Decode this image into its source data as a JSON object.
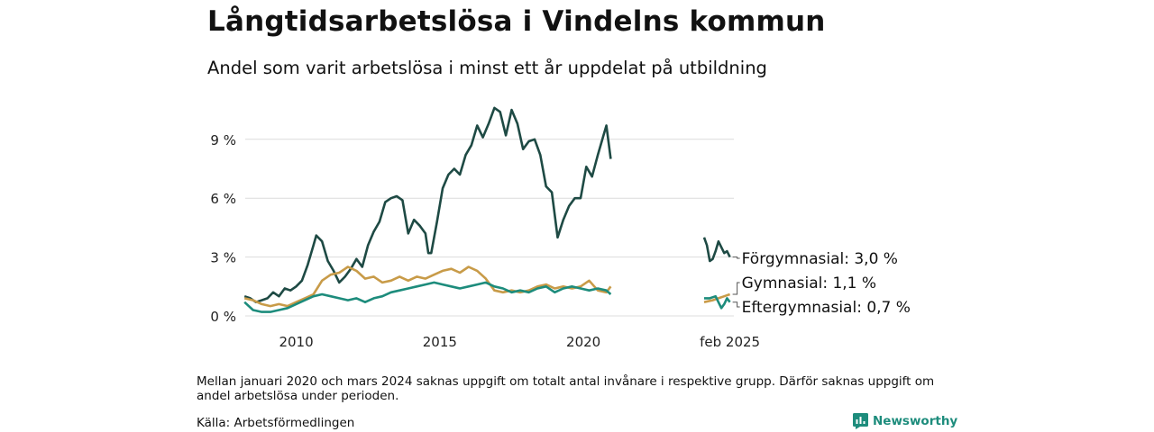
{
  "title": "Långtidsarbetslösa i Vindelns kommun",
  "subtitle": "Andel som varit arbetslösa i minst ett år uppdelat på utbildning",
  "note": "Mellan januari 2020 och mars 2024 saknas uppgift om totalt antal invånare i respektive grupp. Därför saknas uppgift om andel arbetslösa under perioden.",
  "source": "Källa: Arbetsförmedlingen",
  "brand": "Newsworthy",
  "chart_data": {
    "type": "line",
    "y_ticks": [
      {
        "value": 0,
        "label": "0 %"
      },
      {
        "value": 3,
        "label": "3 %"
      },
      {
        "value": 6,
        "label": "6 %"
      },
      {
        "value": 9,
        "label": "9 %"
      }
    ],
    "x_ticks": [
      {
        "value": 2010,
        "label": "2010"
      },
      {
        "value": 2015,
        "label": "2015"
      },
      {
        "value": 2020,
        "label": "2020"
      },
      {
        "value": 2025.1,
        "label": "feb 2025"
      }
    ],
    "xlim": [
      2008.1,
      2025.3
    ],
    "ylim": [
      0,
      10.8
    ],
    "grid": true,
    "legend": "end-of-line labels",
    "series": [
      {
        "name": "Förgymnasial",
        "end_label": "Förgymnasial: 3,0 %",
        "color": "#1e4a44",
        "segments": [
          [
            [
              2008.2,
              1.0
            ],
            [
              2008.4,
              0.9
            ],
            [
              2008.6,
              0.7
            ],
            [
              2008.8,
              0.8
            ],
            [
              2009.0,
              0.9
            ],
            [
              2009.2,
              1.2
            ],
            [
              2009.4,
              1.0
            ],
            [
              2009.6,
              1.4
            ],
            [
              2009.8,
              1.3
            ],
            [
              2010.0,
              1.5
            ],
            [
              2010.2,
              1.8
            ],
            [
              2010.4,
              2.6
            ],
            [
              2010.6,
              3.6
            ],
            [
              2010.7,
              4.1
            ],
            [
              2010.9,
              3.8
            ],
            [
              2011.1,
              2.8
            ],
            [
              2011.3,
              2.3
            ],
            [
              2011.5,
              1.7
            ],
            [
              2011.7,
              2.0
            ],
            [
              2011.9,
              2.4
            ],
            [
              2012.1,
              2.9
            ],
            [
              2012.3,
              2.5
            ],
            [
              2012.5,
              3.6
            ],
            [
              2012.7,
              4.3
            ],
            [
              2012.9,
              4.8
            ],
            [
              2013.1,
              5.8
            ],
            [
              2013.3,
              6.0
            ],
            [
              2013.5,
              6.1
            ],
            [
              2013.7,
              5.9
            ],
            [
              2013.9,
              4.2
            ],
            [
              2014.1,
              4.9
            ],
            [
              2014.3,
              4.6
            ],
            [
              2014.5,
              4.2
            ],
            [
              2014.6,
              3.2
            ],
            [
              2014.7,
              3.2
            ],
            [
              2014.9,
              4.8
            ],
            [
              2015.1,
              6.5
            ],
            [
              2015.3,
              7.2
            ],
            [
              2015.5,
              7.5
            ],
            [
              2015.7,
              7.2
            ],
            [
              2015.9,
              8.2
            ],
            [
              2016.1,
              8.7
            ],
            [
              2016.3,
              9.7
            ],
            [
              2016.5,
              9.1
            ],
            [
              2016.7,
              9.8
            ],
            [
              2016.9,
              10.6
            ],
            [
              2017.1,
              10.4
            ],
            [
              2017.3,
              9.2
            ],
            [
              2017.5,
              10.5
            ],
            [
              2017.7,
              9.8
            ],
            [
              2017.9,
              8.5
            ],
            [
              2018.1,
              8.9
            ],
            [
              2018.3,
              9.0
            ],
            [
              2018.5,
              8.2
            ],
            [
              2018.7,
              6.6
            ],
            [
              2018.9,
              6.3
            ],
            [
              2019.1,
              4.0
            ],
            [
              2019.3,
              4.9
            ],
            [
              2019.5,
              5.6
            ],
            [
              2019.7,
              6.0
            ],
            [
              2019.9,
              6.0
            ],
            [
              2020.1,
              7.6
            ],
            [
              2020.3,
              7.1
            ],
            [
              2020.5,
              8.2
            ],
            [
              2020.7,
              9.2
            ],
            [
              2020.8,
              9.7
            ],
            [
              2020.95,
              8.0
            ]
          ],
          [
            [
              2024.2,
              4.0
            ],
            [
              2024.3,
              3.6
            ],
            [
              2024.4,
              2.8
            ],
            [
              2024.5,
              2.9
            ],
            [
              2024.6,
              3.3
            ],
            [
              2024.7,
              3.8
            ],
            [
              2024.8,
              3.5
            ],
            [
              2024.9,
              3.2
            ],
            [
              2025.0,
              3.3
            ],
            [
              2025.1,
              3.0
            ]
          ]
        ]
      },
      {
        "name": "Gymnasial",
        "end_label": "Gymnasial: 1,1 %",
        "color": "#c89b48",
        "segments": [
          [
            [
              2008.2,
              0.9
            ],
            [
              2008.5,
              0.8
            ],
            [
              2008.8,
              0.6
            ],
            [
              2009.1,
              0.5
            ],
            [
              2009.4,
              0.6
            ],
            [
              2009.7,
              0.5
            ],
            [
              2010.0,
              0.7
            ],
            [
              2010.3,
              0.9
            ],
            [
              2010.6,
              1.1
            ],
            [
              2010.9,
              1.8
            ],
            [
              2011.2,
              2.1
            ],
            [
              2011.5,
              2.2
            ],
            [
              2011.8,
              2.5
            ],
            [
              2012.1,
              2.3
            ],
            [
              2012.4,
              1.9
            ],
            [
              2012.7,
              2.0
            ],
            [
              2013.0,
              1.7
            ],
            [
              2013.3,
              1.8
            ],
            [
              2013.6,
              2.0
            ],
            [
              2013.9,
              1.8
            ],
            [
              2014.2,
              2.0
            ],
            [
              2014.5,
              1.9
            ],
            [
              2014.8,
              2.1
            ],
            [
              2015.1,
              2.3
            ],
            [
              2015.4,
              2.4
            ],
            [
              2015.7,
              2.2
            ],
            [
              2016.0,
              2.5
            ],
            [
              2016.3,
              2.3
            ],
            [
              2016.6,
              1.9
            ],
            [
              2016.9,
              1.3
            ],
            [
              2017.2,
              1.2
            ],
            [
              2017.5,
              1.3
            ],
            [
              2017.8,
              1.2
            ],
            [
              2018.1,
              1.3
            ],
            [
              2018.4,
              1.5
            ],
            [
              2018.7,
              1.6
            ],
            [
              2019.0,
              1.4
            ],
            [
              2019.3,
              1.5
            ],
            [
              2019.6,
              1.4
            ],
            [
              2019.9,
              1.5
            ],
            [
              2020.2,
              1.8
            ],
            [
              2020.5,
              1.3
            ],
            [
              2020.8,
              1.2
            ],
            [
              2020.95,
              1.5
            ]
          ],
          [
            [
              2024.2,
              0.7
            ],
            [
              2024.5,
              0.8
            ],
            [
              2024.7,
              0.9
            ],
            [
              2024.9,
              1.0
            ],
            [
              2025.1,
              1.1
            ]
          ]
        ]
      },
      {
        "name": "Eftergymnasial",
        "end_label": "Eftergymnasial: 0,7 %",
        "color": "#1d8c7c",
        "segments": [
          [
            [
              2008.2,
              0.7
            ],
            [
              2008.5,
              0.3
            ],
            [
              2008.8,
              0.2
            ],
            [
              2009.1,
              0.2
            ],
            [
              2009.4,
              0.3
            ],
            [
              2009.7,
              0.4
            ],
            [
              2010.0,
              0.6
            ],
            [
              2010.3,
              0.8
            ],
            [
              2010.6,
              1.0
            ],
            [
              2010.9,
              1.1
            ],
            [
              2011.2,
              1.0
            ],
            [
              2011.5,
              0.9
            ],
            [
              2011.8,
              0.8
            ],
            [
              2012.1,
              0.9
            ],
            [
              2012.4,
              0.7
            ],
            [
              2012.7,
              0.9
            ],
            [
              2013.0,
              1.0
            ],
            [
              2013.3,
              1.2
            ],
            [
              2013.6,
              1.3
            ],
            [
              2013.9,
              1.4
            ],
            [
              2014.2,
              1.5
            ],
            [
              2014.5,
              1.6
            ],
            [
              2014.8,
              1.7
            ],
            [
              2015.1,
              1.6
            ],
            [
              2015.4,
              1.5
            ],
            [
              2015.7,
              1.4
            ],
            [
              2016.0,
              1.5
            ],
            [
              2016.3,
              1.6
            ],
            [
              2016.6,
              1.7
            ],
            [
              2016.9,
              1.5
            ],
            [
              2017.2,
              1.4
            ],
            [
              2017.5,
              1.2
            ],
            [
              2017.8,
              1.3
            ],
            [
              2018.1,
              1.2
            ],
            [
              2018.4,
              1.4
            ],
            [
              2018.7,
              1.5
            ],
            [
              2019.0,
              1.2
            ],
            [
              2019.3,
              1.4
            ],
            [
              2019.6,
              1.5
            ],
            [
              2019.9,
              1.4
            ],
            [
              2020.2,
              1.3
            ],
            [
              2020.5,
              1.4
            ],
            [
              2020.8,
              1.3
            ],
            [
              2020.95,
              1.1
            ]
          ],
          [
            [
              2024.2,
              0.9
            ],
            [
              2024.4,
              0.9
            ],
            [
              2024.6,
              1.0
            ],
            [
              2024.8,
              0.4
            ],
            [
              2024.9,
              0.6
            ],
            [
              2025.0,
              0.9
            ],
            [
              2025.1,
              0.7
            ]
          ]
        ]
      }
    ]
  }
}
